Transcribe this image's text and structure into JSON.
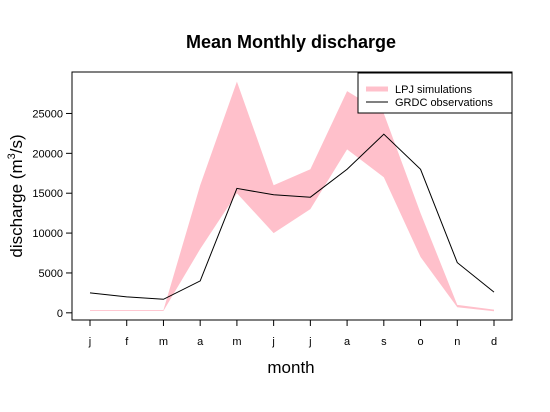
{
  "chart_data": {
    "type": "line",
    "title": "Mean Monthly discharge",
    "xlabel": "month",
    "ylabel": "discharge (m",
    "ylabel_sup": "3",
    "ylabel_tail": "/s)",
    "categories": [
      "j",
      "f",
      "m",
      "a",
      "m",
      "j",
      "j",
      "a",
      "s",
      "o",
      "n",
      "d"
    ],
    "y_ticks": [
      0,
      5000,
      10000,
      15000,
      20000,
      25000
    ],
    "ylim": [
      -900,
      30200
    ],
    "legend_position": "top-right",
    "series": [
      {
        "name": "LPJ simulations",
        "kind": "band",
        "color": "#ffc0cb",
        "lower": [
          250,
          250,
          250,
          8000,
          15000,
          10000,
          13000,
          20500,
          17000,
          7000,
          700,
          200
        ],
        "upper": [
          350,
          350,
          350,
          16000,
          29000,
          16000,
          18000,
          27800,
          25000,
          12500,
          1000,
          400
        ]
      },
      {
        "name": "GRDC observations",
        "kind": "line",
        "color": "#000000",
        "values": [
          2500,
          2000,
          1700,
          4000,
          15600,
          14800,
          14500,
          18000,
          22400,
          18000,
          6300,
          2600
        ]
      }
    ]
  }
}
